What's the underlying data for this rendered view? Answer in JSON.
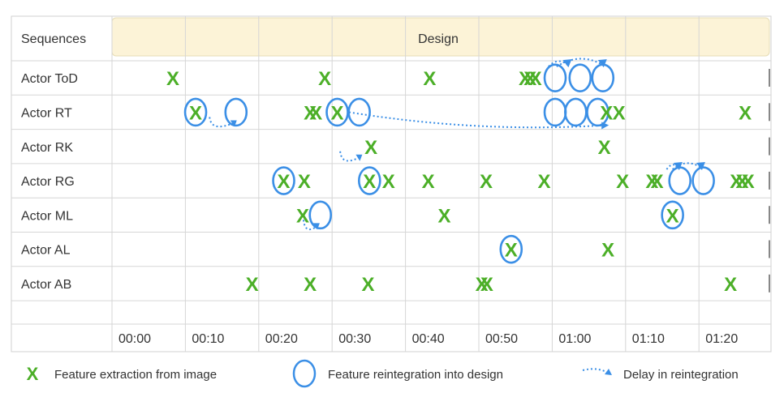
{
  "chart_data": {
    "type": "scatter",
    "header_label": "Sequences",
    "sequence_label": "Design",
    "actors": [
      "Actor ToD",
      "Actor RT",
      "Actor RK",
      "Actor RG",
      "Actor ML",
      "Actor AL",
      "Actor AB"
    ],
    "x_ticks": [
      "00:00",
      "00:10",
      "00:20",
      "00:30",
      "00:40",
      "00:50",
      "01:00",
      "01:10",
      "01:20"
    ],
    "xlim": [
      0,
      87
    ],
    "grid": true,
    "legend_position": "bottom",
    "colors": {
      "extraction": "#4caf28",
      "reintegration": "#3b8fe6",
      "delay": "#3b8fe6",
      "header_fill": "#fcf3d7"
    },
    "series": [
      {
        "name": "Feature extraction from image",
        "marker": "X",
        "points": [
          {
            "actor": "Actor ToD",
            "t": 8.3
          },
          {
            "actor": "Actor ToD",
            "t": 29
          },
          {
            "actor": "Actor ToD",
            "t": 43.3
          },
          {
            "actor": "Actor ToD",
            "t": 56.3
          },
          {
            "actor": "Actor ToD",
            "t": 57
          },
          {
            "actor": "Actor ToD",
            "t": 57.7
          },
          {
            "actor": "Actor RT",
            "t": 11.4
          },
          {
            "actor": "Actor RT",
            "t": 27
          },
          {
            "actor": "Actor RT",
            "t": 27.8
          },
          {
            "actor": "Actor RT",
            "t": 30.7
          },
          {
            "actor": "Actor RT",
            "t": 67.4
          },
          {
            "actor": "Actor RT",
            "t": 69.1
          },
          {
            "actor": "Actor RT",
            "t": 86.3
          },
          {
            "actor": "Actor RK",
            "t": 35.3
          },
          {
            "actor": "Actor RK",
            "t": 67.1
          },
          {
            "actor": "Actor RG",
            "t": 23.4
          },
          {
            "actor": "Actor RG",
            "t": 26.2
          },
          {
            "actor": "Actor RG",
            "t": 35.1
          },
          {
            "actor": "Actor RG",
            "t": 37.7
          },
          {
            "actor": "Actor RG",
            "t": 43.1
          },
          {
            "actor": "Actor RG",
            "t": 51
          },
          {
            "actor": "Actor RG",
            "t": 58.9
          },
          {
            "actor": "Actor RG",
            "t": 69.6
          },
          {
            "actor": "Actor RG",
            "t": 73.6
          },
          {
            "actor": "Actor RG",
            "t": 74.3
          },
          {
            "actor": "Actor RG",
            "t": 85.1
          },
          {
            "actor": "Actor RG",
            "t": 85.9
          },
          {
            "actor": "Actor RG",
            "t": 86.7
          },
          {
            "actor": "Actor ML",
            "t": 26
          },
          {
            "actor": "Actor ML",
            "t": 45.3
          },
          {
            "actor": "Actor ML",
            "t": 76.4
          },
          {
            "actor": "Actor AL",
            "t": 54.4
          },
          {
            "actor": "Actor AL",
            "t": 67.6
          },
          {
            "actor": "Actor AB",
            "t": 19.1
          },
          {
            "actor": "Actor AB",
            "t": 27
          },
          {
            "actor": "Actor AB",
            "t": 34.9
          },
          {
            "actor": "Actor AB",
            "t": 50.4
          },
          {
            "actor": "Actor AB",
            "t": 51.1
          },
          {
            "actor": "Actor AB",
            "t": 84.3
          }
        ]
      },
      {
        "name": "Feature reintegration into design",
        "marker": "O",
        "points": [
          {
            "actor": "Actor ToD",
            "t": 60.4
          },
          {
            "actor": "Actor ToD",
            "t": 63.8
          },
          {
            "actor": "Actor ToD",
            "t": 66.9
          },
          {
            "actor": "Actor RT",
            "t": 11.4
          },
          {
            "actor": "Actor RT",
            "t": 16.9
          },
          {
            "actor": "Actor RT",
            "t": 30.7
          },
          {
            "actor": "Actor RT",
            "t": 33.7
          },
          {
            "actor": "Actor RT",
            "t": 60.4
          },
          {
            "actor": "Actor RT",
            "t": 63.2
          },
          {
            "actor": "Actor RT",
            "t": 66.2
          },
          {
            "actor": "Actor RG",
            "t": 23.4
          },
          {
            "actor": "Actor RG",
            "t": 35.1
          },
          {
            "actor": "Actor RG",
            "t": 77.4
          },
          {
            "actor": "Actor RG",
            "t": 80.6
          },
          {
            "actor": "Actor ML",
            "t": 28.4
          },
          {
            "actor": "Actor ML",
            "t": 76.4
          },
          {
            "actor": "Actor AL",
            "t": 54.4
          }
        ]
      }
    ],
    "delays": [
      {
        "actor": "Actor RT",
        "from": 13.3,
        "to": 16.9
      },
      {
        "actor": "Actor RT",
        "from": 32.3,
        "to": 67.5
      },
      {
        "actor": "Actor RK",
        "from": 31.1,
        "to": 34
      },
      {
        "actor": "Actor ML",
        "from": 26.1,
        "to": 28.2
      },
      {
        "actor": "Actor ToD",
        "from": 59.5,
        "to": 62.1
      },
      {
        "actor": "Actor ToD",
        "from": 60.6,
        "to": 66.9
      },
      {
        "actor": "Actor RG",
        "from": 75.6,
        "to": 77.2
      },
      {
        "actor": "Actor RG",
        "from": 76.4,
        "to": 80.3
      }
    ],
    "legend": {
      "extraction": "Feature extraction from image",
      "reintegration": "Feature reintegration into design",
      "delay": "Delay in reintegration"
    }
  }
}
